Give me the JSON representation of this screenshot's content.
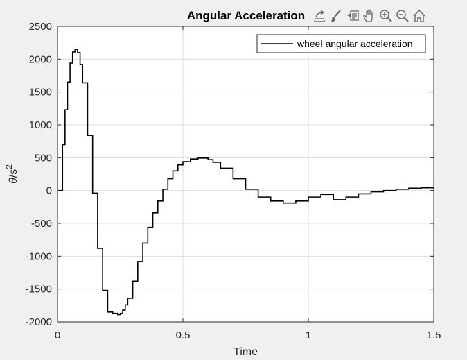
{
  "toolbar": {
    "buttons": [
      {
        "name": "export-icon"
      },
      {
        "name": "brush-icon"
      },
      {
        "name": "datatip-icon"
      },
      {
        "name": "pan-icon"
      },
      {
        "name": "zoom-in-icon"
      },
      {
        "name": "zoom-out-icon"
      },
      {
        "name": "home-icon"
      }
    ]
  },
  "chart_data": {
    "type": "line",
    "title": "Angular Acceleration",
    "xlabel": "Time",
    "ylabel_base": "θ/s",
    "ylabel_sup": "2",
    "xlim": [
      0,
      1.5
    ],
    "ylim": [
      -2000,
      2500
    ],
    "xticks": [
      0,
      0.5,
      1,
      1.5
    ],
    "xtick_labels": [
      "0",
      "0.5",
      "1",
      "1.5"
    ],
    "yticks": [
      -2000,
      -1500,
      -1000,
      -500,
      0,
      500,
      1000,
      1500,
      2000,
      2500
    ],
    "ytick_labels": [
      "-2000",
      "-1500",
      "-1000",
      "-500",
      "0",
      "500",
      "1000",
      "1500",
      "2000",
      "2500"
    ],
    "grid": true,
    "legend_position": "top-right",
    "series": [
      {
        "name": "wheel angular acceleration",
        "color": "#000000",
        "step": true,
        "x": [
          0,
          0.02,
          0.03,
          0.04,
          0.05,
          0.06,
          0.07,
          0.08,
          0.09,
          0.1,
          0.12,
          0.14,
          0.16,
          0.18,
          0.2,
          0.22,
          0.24,
          0.25,
          0.26,
          0.27,
          0.28,
          0.3,
          0.32,
          0.34,
          0.36,
          0.38,
          0.4,
          0.42,
          0.44,
          0.46,
          0.48,
          0.5,
          0.53,
          0.56,
          0.6,
          0.62,
          0.65,
          0.7,
          0.75,
          0.8,
          0.85,
          0.9,
          0.95,
          1.0,
          1.05,
          1.1,
          1.15,
          1.2,
          1.25,
          1.3,
          1.35,
          1.4,
          1.45,
          1.5
        ],
        "y": [
          0,
          700,
          1230,
          1650,
          1940,
          2110,
          2150,
          2100,
          1920,
          1640,
          840,
          -40,
          -880,
          -1520,
          -1850,
          -1870,
          -1890,
          -1870,
          -1820,
          -1740,
          -1640,
          -1380,
          -1080,
          -800,
          -560,
          -340,
          -160,
          20,
          180,
          300,
          390,
          440,
          480,
          495,
          470,
          430,
          340,
          180,
          20,
          -100,
          -160,
          -190,
          -160,
          -100,
          -60,
          -140,
          -100,
          -50,
          -20,
          0,
          20,
          35,
          42,
          45
        ]
      }
    ]
  }
}
